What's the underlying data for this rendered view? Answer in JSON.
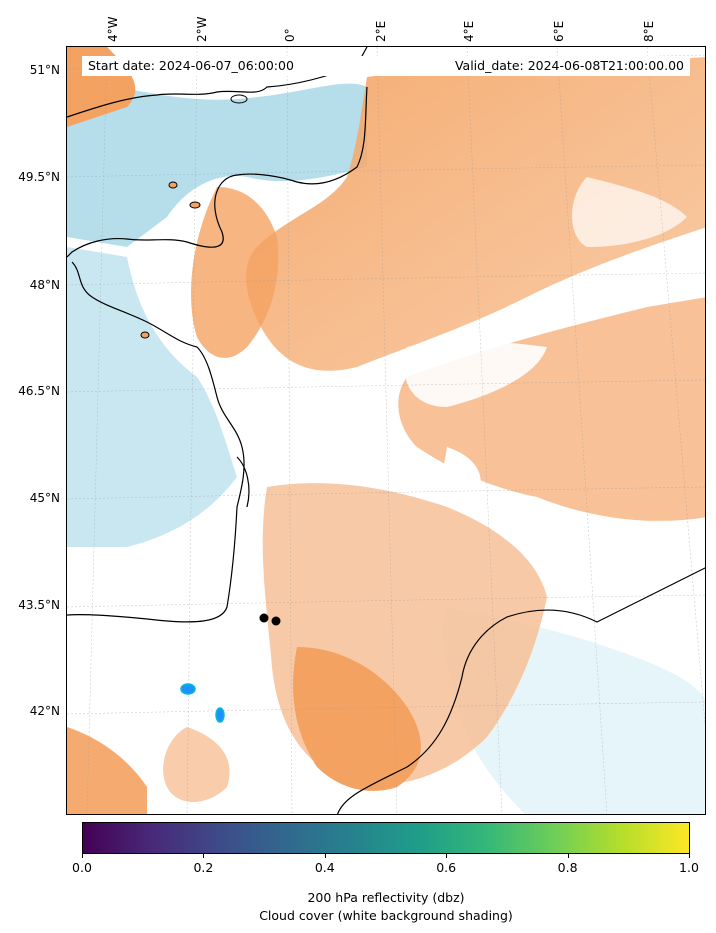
{
  "header": {
    "start_date": "Start date: 2024-06-07_06:00:00",
    "valid_date": "Valid_date: 2024-06-08T21:00:00.00"
  },
  "longitude_labels": [
    "4°W",
    "2°W",
    "0°",
    "2°E",
    "4°E",
    "6°E",
    "8°E"
  ],
  "latitude_labels": [
    "51°N",
    "49.5°N",
    "48°N",
    "46.5°N",
    "45°N",
    "43.5°N",
    "42°N"
  ],
  "colorbar": {
    "ticks": [
      "0.0",
      "0.2",
      "0.4",
      "0.6",
      "0.8",
      "1.0"
    ],
    "colormap": "viridis",
    "min": 0.0,
    "max": 1.0
  },
  "caption": {
    "line1": "200 hPa reflectivity (dbz)",
    "line2": "Cloud cover (white background shading)"
  },
  "colors": {
    "land_orange": "#f4a261",
    "sea_blue": "#a8d8e6",
    "reflectivity_blue": "#1e90ff"
  }
}
